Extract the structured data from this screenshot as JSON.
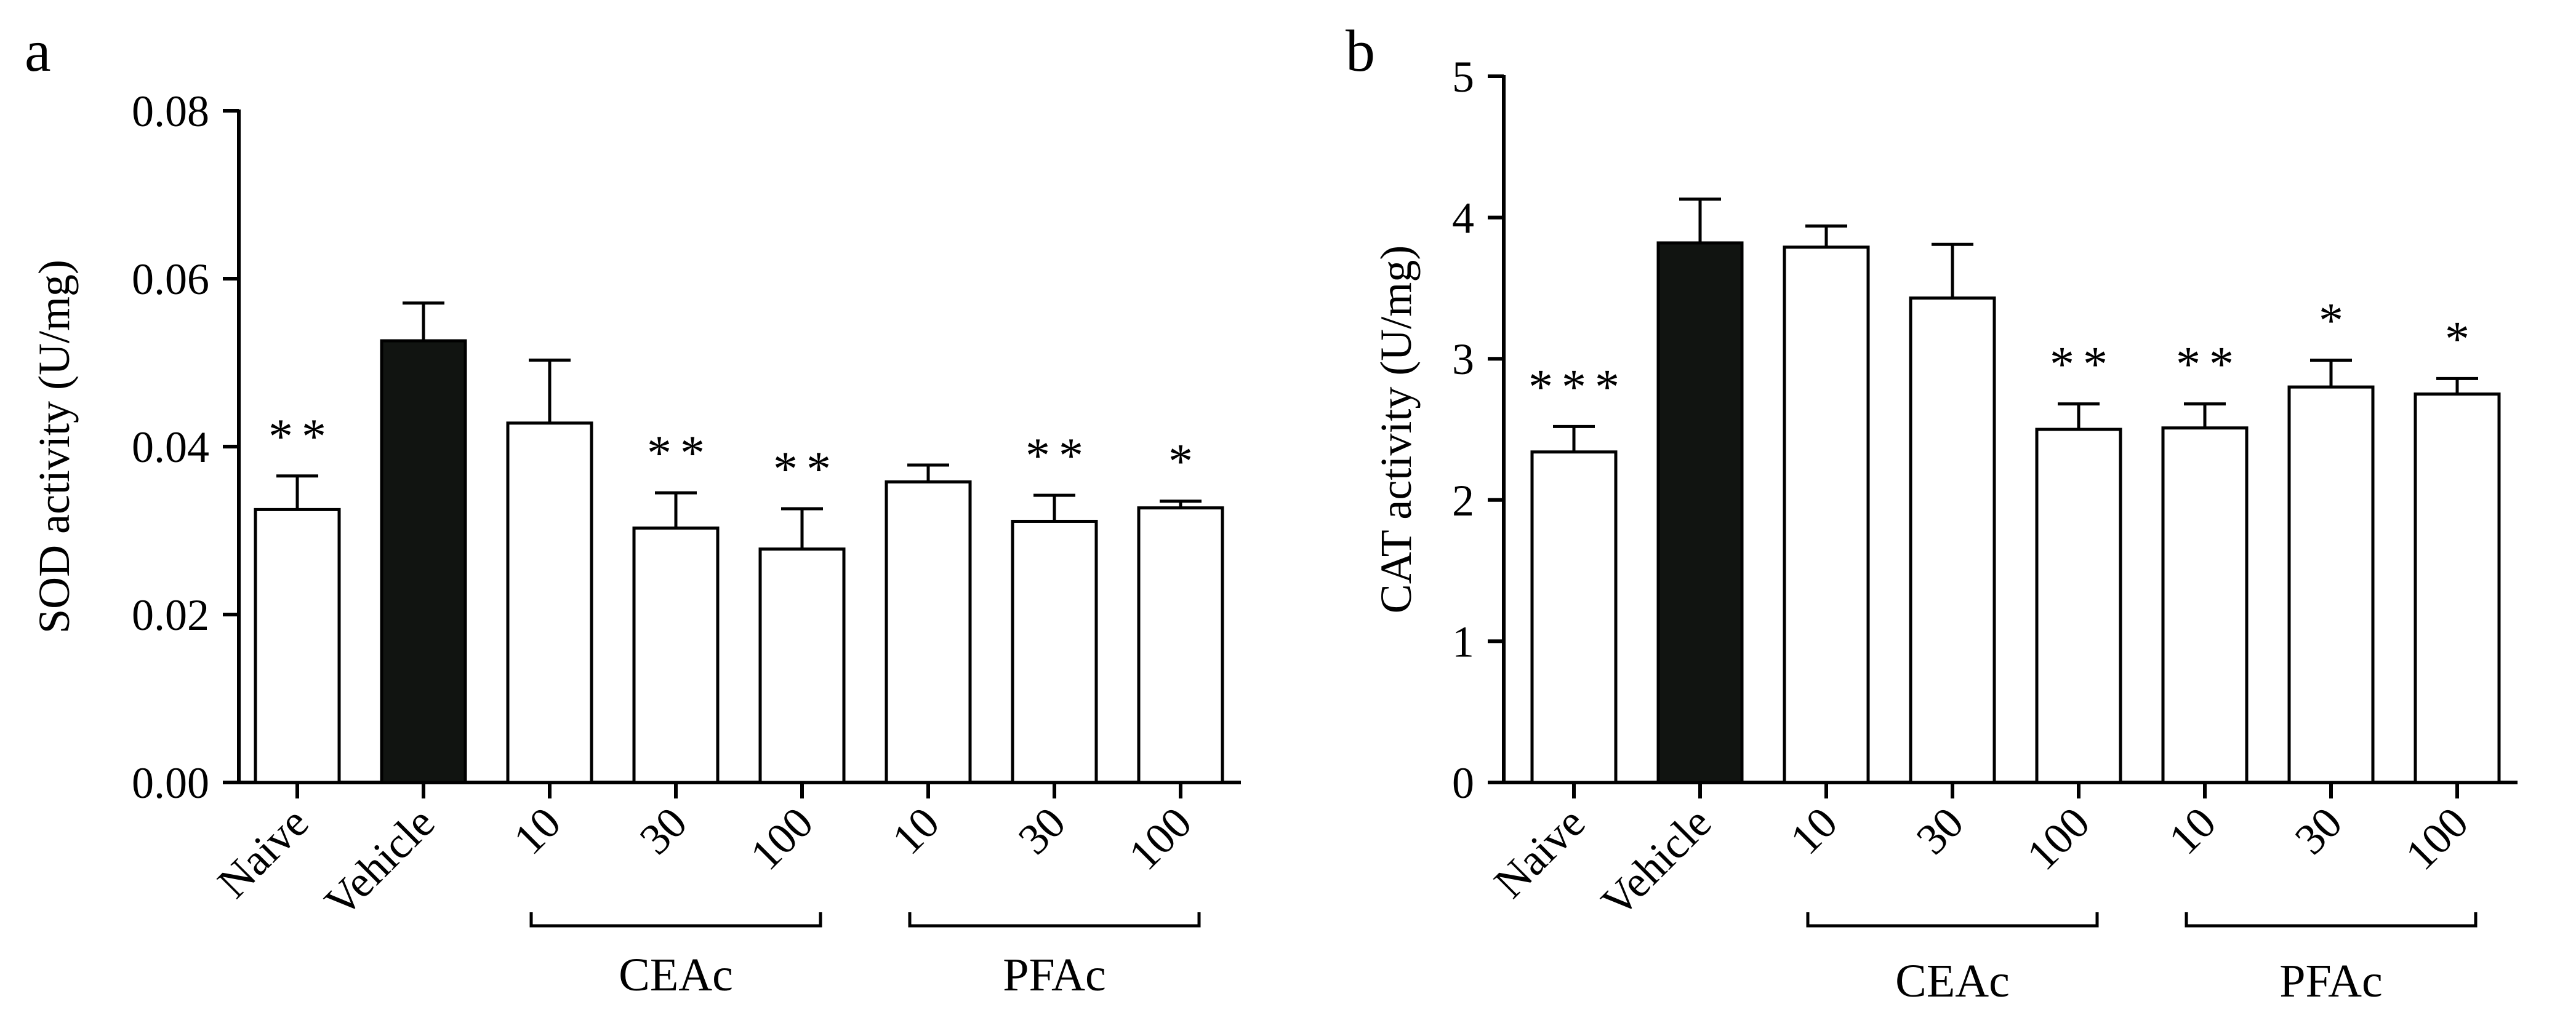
{
  "chart_data": [
    {
      "type": "bar",
      "panel": "a",
      "ylabel": "SOD activity (U/mg)",
      "ylim": [
        0,
        0.08
      ],
      "yticks": [
        "0.00",
        "0.02",
        "0.04",
        "0.06",
        "0.08"
      ],
      "ytick_values": [
        0,
        0.02,
        0.04,
        0.06,
        0.08
      ],
      "categories": [
        "Naive",
        "Vehicle",
        "10",
        "30",
        "100",
        "10",
        "30",
        "100"
      ],
      "values": [
        0.0325,
        0.0526,
        0.0428,
        0.0303,
        0.0278,
        0.0358,
        0.0311,
        0.0327
      ],
      "errors": [
        0.004,
        0.0045,
        0.0075,
        0.0042,
        0.0048,
        0.002,
        0.0031,
        0.0008
      ],
      "fills": [
        "#ffffff",
        "#111411",
        "#ffffff",
        "#ffffff",
        "#ffffff",
        "#ffffff",
        "#ffffff",
        "#ffffff"
      ],
      "significance": [
        "**",
        "",
        "",
        "**",
        "**",
        "",
        "**",
        "*"
      ],
      "groups": [
        {
          "label": "CEAc",
          "from": 2,
          "to": 4
        },
        {
          "label": "PFAc",
          "from": 5,
          "to": 7
        }
      ]
    },
    {
      "type": "bar",
      "panel": "b",
      "ylabel": "CAT activity (U/mg)",
      "ylim": [
        0,
        5
      ],
      "yticks": [
        "0",
        "1",
        "2",
        "3",
        "4",
        "5"
      ],
      "ytick_values": [
        0,
        1,
        2,
        3,
        4,
        5
      ],
      "categories": [
        "Naive",
        "Vehicle",
        "10",
        "30",
        "100",
        "10",
        "30",
        "100"
      ],
      "values": [
        2.34,
        3.82,
        3.79,
        3.43,
        2.5,
        2.51,
        2.8,
        2.75
      ],
      "errors": [
        0.18,
        0.31,
        0.15,
        0.38,
        0.18,
        0.17,
        0.19,
        0.11
      ],
      "fills": [
        "#ffffff",
        "#111411",
        "#ffffff",
        "#ffffff",
        "#ffffff",
        "#ffffff",
        "#ffffff",
        "#ffffff"
      ],
      "significance": [
        "***",
        "",
        "",
        "",
        "**",
        "**",
        "*",
        "*"
      ],
      "groups": [
        {
          "label": "CEAc",
          "from": 2,
          "to": 4
        },
        {
          "label": "PFAc",
          "from": 5,
          "to": 7
        }
      ]
    }
  ]
}
